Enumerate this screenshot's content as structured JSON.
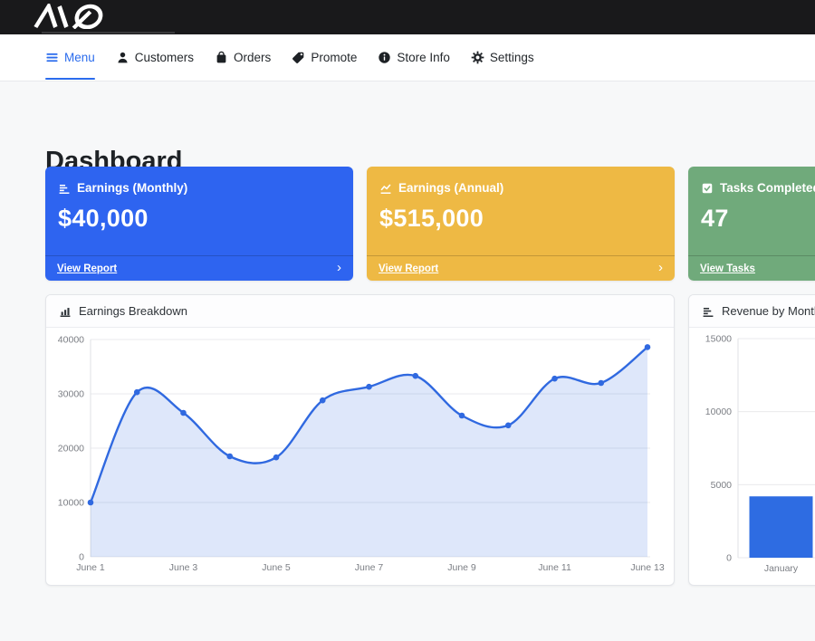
{
  "brand": {
    "logo_text": "AQ"
  },
  "nav": {
    "active_color": "#2b6ced",
    "items": [
      {
        "label": "Menu",
        "icon": "menu-icon",
        "icon_ref": "#i-menu",
        "active": true
      },
      {
        "label": "Customers",
        "icon": "user-icon",
        "icon_ref": "#i-user",
        "active": false
      },
      {
        "label": "Orders",
        "icon": "bag-icon",
        "icon_ref": "#i-bag",
        "active": false
      },
      {
        "label": "Promote",
        "icon": "tag-icon",
        "icon_ref": "#i-tag",
        "active": false
      },
      {
        "label": "Store Info",
        "icon": "info-icon",
        "icon_ref": "#i-info",
        "active": false
      },
      {
        "label": "Settings",
        "icon": "gear-icon",
        "icon_ref": "#i-gear",
        "active": false
      }
    ]
  },
  "page": {
    "title": "Dashboard"
  },
  "stat_cards": [
    {
      "title": "Earnings (Monthly)",
      "value": "$40,000",
      "link_label": "View Report",
      "chevron": "›",
      "color": "#2e64f0",
      "icon": "chart-lines-icon",
      "icon_ref": "#i-hbars"
    },
    {
      "title": "Earnings (Annual)",
      "value": "$515,000",
      "link_label": "View Report",
      "chevron": "›",
      "color": "#eeb944",
      "icon": "line-chart-icon",
      "icon_ref": "#i-line"
    },
    {
      "title": "Tasks Completed",
      "value": "47",
      "link_label": "View Tasks",
      "chevron": "›",
      "color": "#70aa7b",
      "icon": "check-square-icon",
      "icon_ref": "#i-check"
    }
  ],
  "chart_data": [
    {
      "type": "line",
      "title": "Earnings Breakdown",
      "icon": "bar-chart-icon",
      "icon_ref": "#i-bars",
      "x": [
        "June 1",
        "June 2",
        "June 3",
        "June 4",
        "June 5",
        "June 6",
        "June 7",
        "June 8",
        "June 9",
        "June 10",
        "June 11",
        "June 12",
        "June 13"
      ],
      "values": [
        10000,
        30300,
        26500,
        18500,
        18300,
        28800,
        31300,
        33300,
        26000,
        24200,
        32800,
        32000,
        38600
      ],
      "ylim": [
        0,
        40000
      ],
      "yticks": [
        0,
        10000,
        20000,
        30000,
        40000
      ],
      "xtick_step": 2,
      "grid": true,
      "legend": "none",
      "line_color": "#3069e0",
      "fill_color": "rgba(48,105,224,0.16)",
      "point_color": "#3069e0"
    },
    {
      "type": "bar",
      "title": "Revenue by Month",
      "icon": "chart-lines-icon",
      "icon_ref": "#i-hbars",
      "categories": [
        "January"
      ],
      "values": [
        4200
      ],
      "ylim": [
        0,
        15000
      ],
      "yticks": [
        0,
        5000,
        10000,
        15000
      ],
      "grid": true,
      "legend": "none",
      "bar_color": "#2e6ce2"
    }
  ]
}
